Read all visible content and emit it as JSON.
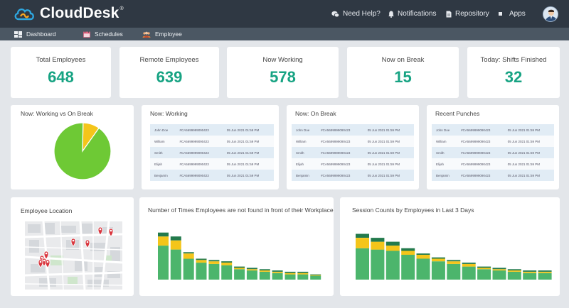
{
  "brand": {
    "name": "CloudDesk",
    "mark": "®",
    "accent": "#17a383",
    "topbar_color": "#2f3843"
  },
  "topnav": {
    "help": {
      "label": "Need Help?",
      "icon": "chat-bubbles-icon"
    },
    "notifications": {
      "label": "Notifications",
      "icon": "bell-icon"
    },
    "repository": {
      "label": "Repository",
      "icon": "document-icon"
    },
    "apps": {
      "label": "Apps",
      "icon": "square-icon"
    }
  },
  "subnav": {
    "dashboard": {
      "label": "Dashboard",
      "icon": "dashboard-icon"
    },
    "schedules": {
      "label": "Schedules",
      "icon": "calendar-icon"
    },
    "employee": {
      "label": "Employee",
      "icon": "people-icon"
    }
  },
  "stats": [
    {
      "label": "Total Employees",
      "value": "648"
    },
    {
      "label": "Remote Employees",
      "value": "639"
    },
    {
      "label": "Now Working",
      "value": "578"
    },
    {
      "label": "Now on Break",
      "value": "15"
    },
    {
      "label": "Today: Shifts Finished",
      "value": "32"
    }
  ],
  "pie_title": "Now: Working vs On Break",
  "tables": [
    {
      "title": "Now: Working",
      "rows": [
        [
          "John Doe",
          "#CA5699999090423",
          "05 Jun 2021 01:59 PM"
        ],
        [
          "William",
          "#CA5699999090423",
          "05 Jun 2021 01:59 PM"
        ],
        [
          "Smith",
          "#CA5699999090423",
          "05 Jun 2021 01:59 PM"
        ],
        [
          "Elijah",
          "#CA5699999090423",
          "05 Jun 2021 01:59 PM"
        ],
        [
          "Benjamin",
          "#CA5699999090423",
          "05 Jun 2021 01:59 PM"
        ]
      ]
    },
    {
      "title": "Now: On Break",
      "rows": [
        [
          "John Doe",
          "#CA5699999090423",
          "05 Jun 2021 01:59 PM"
        ],
        [
          "William",
          "#CA5699999090423",
          "05 Jun 2021 01:59 PM"
        ],
        [
          "Smith",
          "#CA5699999090423",
          "05 Jun 2021 01:59 PM"
        ],
        [
          "Elijah",
          "#CA5699999090423",
          "05 Jun 2021 01:59 PM"
        ],
        [
          "Benjamin",
          "#CA5699999090423",
          "05 Jun 2021 01:59 PM"
        ]
      ]
    },
    {
      "title": "Recent Punches",
      "rows": [
        [
          "John Doe",
          "#CA5699999090423",
          "05 Jun 2021 01:59 PM"
        ],
        [
          "William",
          "#CA5699999090423",
          "05 Jun 2021 01:59 PM"
        ],
        [
          "Smith",
          "#CA5699999090423",
          "05 Jun 2021 01:59 PM"
        ],
        [
          "Elijah",
          "#CA5699999090423",
          "05 Jun 2021 01:59 PM"
        ],
        [
          "Benjamin",
          "#CA5699999090423",
          "05 Jun 2021 01:59 PM"
        ]
      ]
    }
  ],
  "location_title": "Employee Location",
  "chart_data": [
    {
      "type": "pie",
      "title": "Now: Working vs On Break",
      "slices": [
        {
          "name": "Working",
          "value": 578,
          "color": "#6ec935"
        },
        {
          "name": "On Break",
          "value": 15,
          "color": "#f4c51a"
        }
      ]
    },
    {
      "type": "bar",
      "stacked": true,
      "title": "Number of Times Employees are not found in front of their Workplace",
      "colors": [
        "#4cb56c",
        "#f4c51a",
        "#237a4c"
      ],
      "series": [
        {
          "values": [
            26,
            23,
            16,
            13,
            12,
            11,
            8,
            7,
            6,
            5,
            4,
            4,
            3
          ]
        },
        {
          "values": [
            7,
            7,
            4,
            2,
            2,
            2,
            1,
            1,
            1,
            1,
            1,
            1,
            0.5
          ]
        },
        {
          "values": [
            3,
            3,
            1,
            1,
            1,
            1,
            1,
            1,
            1,
            1,
            1,
            1,
            0.5
          ]
        }
      ],
      "ymax": 38
    },
    {
      "type": "bar",
      "stacked": true,
      "title": "Session Counts by Employees in Last 3 Days",
      "colors": [
        "#4cb56c",
        "#f4c51a",
        "#237a4c"
      ],
      "series": [
        {
          "values": [
            24,
            23,
            22,
            19,
            16,
            14,
            12,
            10,
            8,
            7,
            6,
            5,
            5
          ]
        },
        {
          "values": [
            8,
            6,
            4,
            3,
            3,
            2,
            2,
            2,
            1,
            1,
            1,
            1,
            1
          ]
        },
        {
          "values": [
            3,
            3,
            3,
            2,
            1,
            1,
            1,
            1,
            1,
            1,
            1,
            1,
            1
          ]
        }
      ],
      "ymax": 38
    }
  ]
}
